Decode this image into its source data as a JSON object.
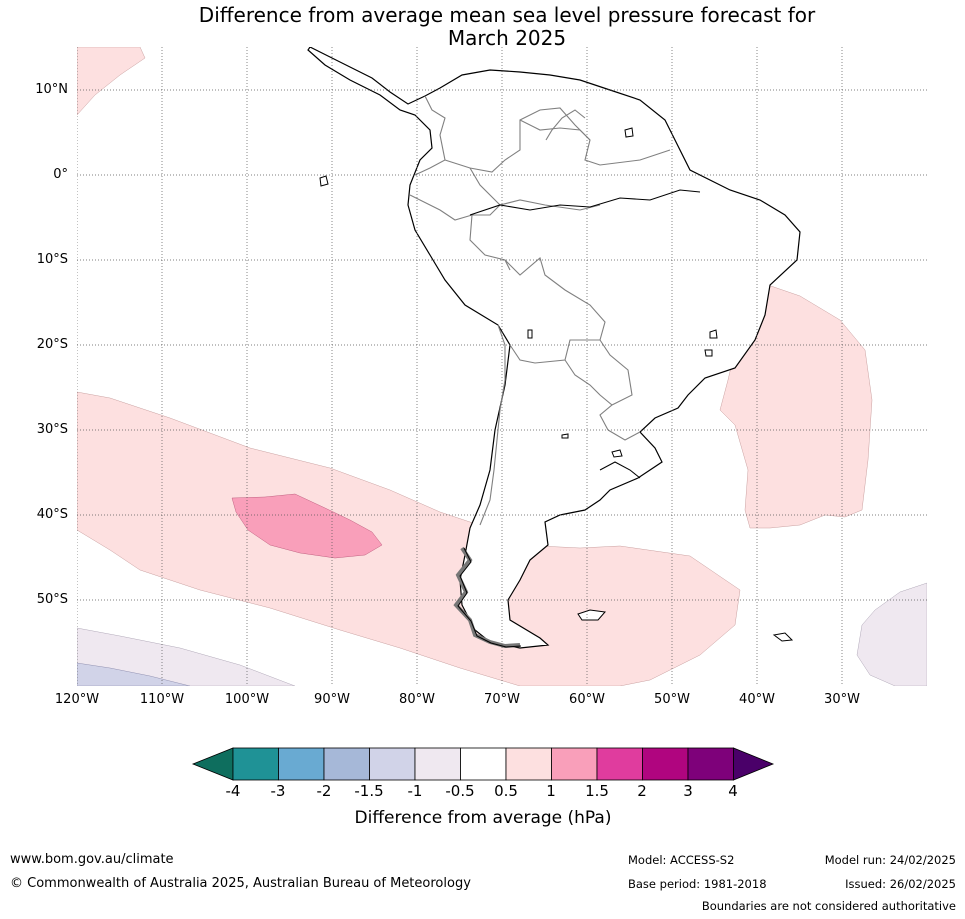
{
  "title": {
    "line1": "Difference from average mean sea level pressure forecast for",
    "line2": "March 2025"
  },
  "map": {
    "latitude_labels": [
      "10°N",
      "0°",
      "10°S",
      "20°S",
      "30°S",
      "40°S",
      "50°S"
    ],
    "longitude_labels": [
      "120°W",
      "110°W",
      "100°W",
      "90°W",
      "80°W",
      "70°W",
      "60°W",
      "50°W",
      "40°W",
      "30°W"
    ],
    "colors": {
      "land": "#ffffff",
      "coastline": "#000000",
      "borders": "#808080",
      "grid": "#555555"
    }
  },
  "colorbar": {
    "tick_labels": [
      "-4",
      "-3",
      "-2",
      "-1.5",
      "-1",
      "-0.5",
      "0.5",
      "1",
      "1.5",
      "2",
      "3",
      "4"
    ],
    "colors": [
      "#0e6e5e",
      "#1f9296",
      "#69aad2",
      "#a6b8d8",
      "#d1d3e8",
      "#efe8f0",
      "#ffffff",
      "#fde0e0",
      "#f99fba",
      "#e03c9e",
      "#b0057f",
      "#7e017a",
      "#4a0069"
    ],
    "label": "Difference from average (hPa)"
  },
  "footer": {
    "website": "www.bom.gov.au/climate",
    "copyright": "© Commonwealth of Australia 2025, Australian Bureau of Meteorology",
    "model": "Model: ACCESS-S2",
    "base_period": "Base period: 1981-2018",
    "model_run": "Model run: 24/02/2025",
    "issued": "Issued: 26/02/2025",
    "disclaimer": "Boundaries are not considered authoritative"
  }
}
